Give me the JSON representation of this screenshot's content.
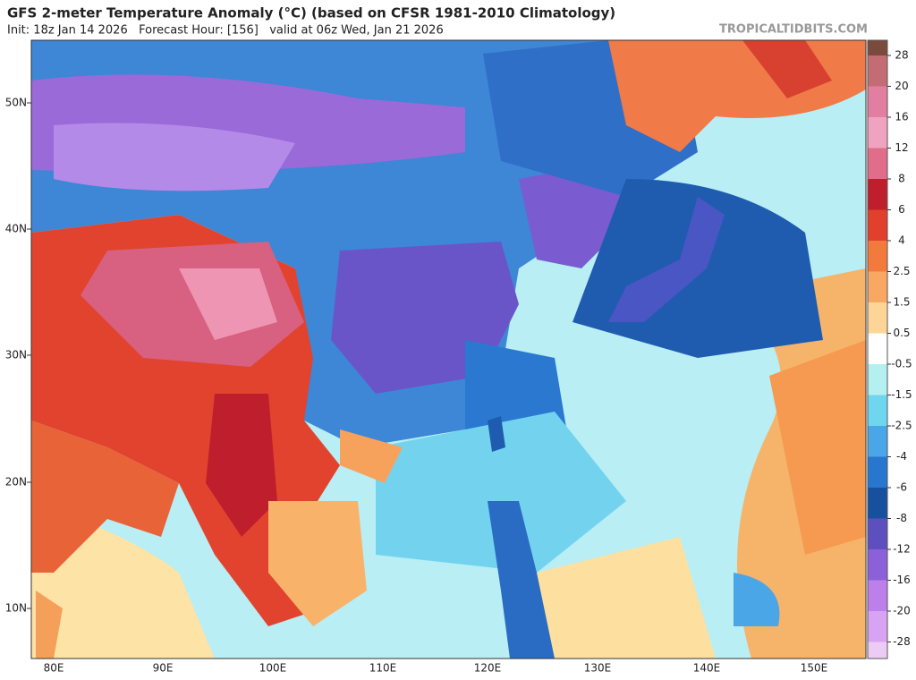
{
  "header": {
    "title": "GFS 2-meter Temperature Anomaly (°C) (based on CFSR 1981-2010 Climatology)",
    "subtitle": "Init: 18z Jan 14 2026   Forecast Hour: [156]   valid at 06z Wed, Jan 21 2026",
    "watermark": "TROPICALTIDBITS.COM"
  },
  "map": {
    "lat_labels": [
      "50N",
      "40N",
      "30N",
      "20N",
      "10N"
    ],
    "lon_labels": [
      "80E",
      "90E",
      "100E",
      "110E",
      "120E",
      "130E",
      "140E",
      "150E"
    ]
  },
  "colorbar": {
    "levels": [
      28,
      20,
      16,
      12,
      8,
      6,
      4,
      2.5,
      1.5,
      0.5,
      -0.5,
      -1.5,
      -2.5,
      -4,
      -6,
      -8,
      -12,
      -16,
      -20,
      -28
    ],
    "colors": [
      "#7a4a3c",
      "#c46c74",
      "#e27fa0",
      "#f0a3bf",
      "#e06d8a",
      "#bf1e2d",
      "#e0402c",
      "#f27a3d",
      "#f8a862",
      "#fdd596",
      "#ffffff",
      "#b4f0f0",
      "#6fd6ef",
      "#4aa6e6",
      "#2777cf",
      "#17509e",
      "#5e4fc0",
      "#8c60d8",
      "#bd80ea",
      "#d8a3f2",
      "#ecccf4"
    ]
  }
}
